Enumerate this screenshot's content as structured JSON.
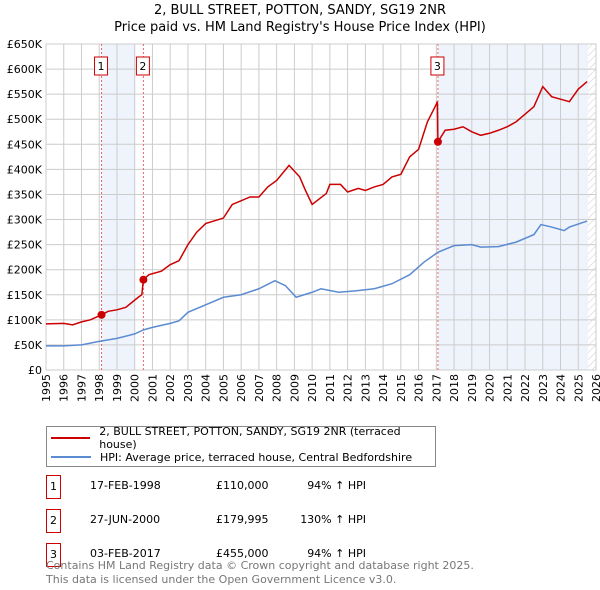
{
  "chart_data": {
    "type": "line",
    "title": "2, BULL STREET, POTTON, SANDY, SG19 2NR",
    "subtitle": "Price paid vs. HM Land Registry's House Price Index (HPI)",
    "xlim": [
      1995,
      2026
    ],
    "ylim": [
      0,
      650000
    ],
    "x_ticks": [
      "1995",
      "1996",
      "1997",
      "1998",
      "1999",
      "2000",
      "2001",
      "2002",
      "2003",
      "2004",
      "2005",
      "2006",
      "2007",
      "2008",
      "2009",
      "2010",
      "2011",
      "2012",
      "2013",
      "2014",
      "2015",
      "2016",
      "2017",
      "2018",
      "2019",
      "2020",
      "2021",
      "2022",
      "2023",
      "2024",
      "2025",
      "2026"
    ],
    "y_ticks": [
      "£0",
      "£50K",
      "£100K",
      "£150K",
      "£200K",
      "£250K",
      "£300K",
      "£350K",
      "£400K",
      "£450K",
      "£500K",
      "£550K",
      "£600K",
      "£650K"
    ],
    "grid": true,
    "colors": {
      "property": "#cc0000",
      "hpi": "#5b8bd0",
      "shade": "#eef3fc"
    },
    "series": [
      {
        "name": "2, BULL STREET, POTTON, SANDY, SG19 2NR (terraced house)",
        "points": [
          [
            1995,
            92
          ],
          [
            1996,
            93
          ],
          [
            1996.5,
            90
          ],
          [
            1997,
            96
          ],
          [
            1997.5,
            100
          ],
          [
            1998.13,
            110
          ],
          [
            1998.5,
            117
          ],
          [
            1999,
            120
          ],
          [
            1999.5,
            125
          ],
          [
            2000.2,
            145
          ],
          [
            2000.4,
            150
          ],
          [
            2000.49,
            180
          ],
          [
            2000.8,
            190
          ],
          [
            2001.5,
            197
          ],
          [
            2002,
            210
          ],
          [
            2002.5,
            218
          ],
          [
            2003,
            250
          ],
          [
            2003.5,
            275
          ],
          [
            2004,
            292
          ],
          [
            2005,
            303
          ],
          [
            2005.5,
            330
          ],
          [
            2006.5,
            345
          ],
          [
            2007,
            345
          ],
          [
            2007.5,
            365
          ],
          [
            2008,
            378
          ],
          [
            2008.7,
            408
          ],
          [
            2009.3,
            385
          ],
          [
            2009.6,
            360
          ],
          [
            2010,
            330
          ],
          [
            2010.8,
            352
          ],
          [
            2011,
            370
          ],
          [
            2011.6,
            370
          ],
          [
            2012,
            355
          ],
          [
            2012.6,
            362
          ],
          [
            2013,
            358
          ],
          [
            2013.5,
            365
          ],
          [
            2014,
            370
          ],
          [
            2014.5,
            385
          ],
          [
            2015,
            390
          ],
          [
            2015.5,
            425
          ],
          [
            2016,
            440
          ],
          [
            2016.5,
            495
          ],
          [
            2017,
            530
          ],
          [
            2017.06,
            535
          ],
          [
            2017.09,
            455
          ],
          [
            2017.5,
            478
          ],
          [
            2018,
            480
          ],
          [
            2018.5,
            485
          ],
          [
            2019,
            475
          ],
          [
            2019.5,
            468
          ],
          [
            2020,
            472
          ],
          [
            2020.5,
            478
          ],
          [
            2021,
            485
          ],
          [
            2021.5,
            495
          ],
          [
            2022,
            510
          ],
          [
            2022.5,
            525
          ],
          [
            2023,
            565
          ],
          [
            2023.5,
            545
          ],
          [
            2024,
            540
          ],
          [
            2024.5,
            535
          ],
          [
            2025,
            560
          ],
          [
            2025.5,
            575
          ]
        ]
      },
      {
        "name": "HPI: Average price, terraced house, Central Bedfordshire",
        "points": [
          [
            1995,
            48
          ],
          [
            1996,
            48
          ],
          [
            1997,
            50
          ],
          [
            1998,
            57
          ],
          [
            1999,
            63
          ],
          [
            2000,
            72
          ],
          [
            2000.5,
            80
          ],
          [
            2001,
            85
          ],
          [
            2002,
            93
          ],
          [
            2002.5,
            98
          ],
          [
            2003,
            115
          ],
          [
            2004,
            130
          ],
          [
            2005,
            145
          ],
          [
            2006,
            150
          ],
          [
            2007,
            162
          ],
          [
            2007.9,
            178
          ],
          [
            2008.5,
            168
          ],
          [
            2009.1,
            145
          ],
          [
            2010,
            155
          ],
          [
            2010.5,
            162
          ],
          [
            2011.5,
            155
          ],
          [
            2012.5,
            158
          ],
          [
            2013.5,
            162
          ],
          [
            2014.5,
            172
          ],
          [
            2015.5,
            190
          ],
          [
            2016.3,
            215
          ],
          [
            2017.1,
            235
          ],
          [
            2018,
            248
          ],
          [
            2019,
            250
          ],
          [
            2019.5,
            245
          ],
          [
            2020.5,
            246
          ],
          [
            2021.5,
            255
          ],
          [
            2022.5,
            270
          ],
          [
            2022.9,
            290
          ],
          [
            2023.5,
            285
          ],
          [
            2024.2,
            278
          ],
          [
            2024.5,
            285
          ],
          [
            2025.5,
            297
          ]
        ]
      }
    ],
    "value_unit": "thousand GBP",
    "sales": [
      {
        "label": "1",
        "date": "17-FEB-1998",
        "x": 1998.13,
        "price": "£110,000",
        "value": 110,
        "hpi": "94% ↑ HPI"
      },
      {
        "label": "2",
        "date": "27-JUN-2000",
        "x": 2000.49,
        "price": "£179,995",
        "value": 180,
        "hpi": "130% ↑ HPI"
      },
      {
        "label": "3",
        "date": "03-FEB-2017",
        "x": 2017.09,
        "price": "£455,000",
        "value": 455,
        "hpi": "94% ↑ HPI"
      }
    ],
    "shaded_ranges": [
      [
        1998.13,
        2000.0
      ],
      [
        2017.09,
        2025.55
      ]
    ],
    "hatched_from": 2025.55
  },
  "footer": [
    "Contains HM Land Registry data © Crown copyright and database right 2025.",
    "This data is licensed under the Open Government Licence v3.0."
  ]
}
